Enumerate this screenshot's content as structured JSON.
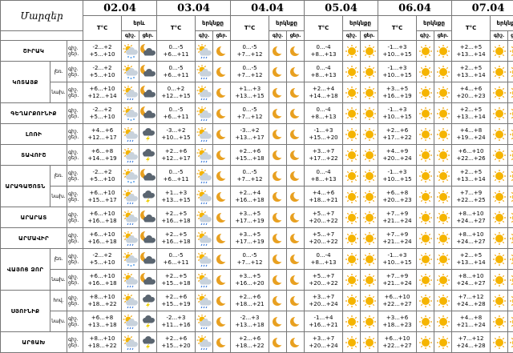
{
  "header": {
    "regions_label": "Մարզեր",
    "temp_unit": "T°C",
    "sky_label": "երկնքը",
    "sky_label_short": "երև",
    "day_label": "ցեր.",
    "night_label": "գիշ.",
    "dates": [
      "02.04",
      "03.04",
      "04.04",
      "05.04",
      "06.04",
      "07.04"
    ]
  },
  "sub": {
    "day": "ցեր.",
    "night": "գիշ.",
    "lowland": "լեռ.",
    "foothill": "նախ.",
    "hills": "հով."
  },
  "period": {
    "night": "գիշ.",
    "day": "ցեր."
  },
  "regions": [
    {
      "name": "ՇԻՐԱԿ",
      "rows": [
        {
          "temps": [
            [
              "-2...+2",
              "+5...+10"
            ],
            [
              "0...-5",
              "+6...+11"
            ],
            [
              "0...-5",
              "+7...+12"
            ],
            [
              "0...-4",
              "+8...+13"
            ],
            [
              "-1...+3",
              "+10...+15"
            ],
            [
              "+2...+5",
              "+13...+14"
            ]
          ],
          "icons": [
            "snow-cloud",
            "cloud-moon",
            "sunny-rain",
            "moon",
            "moon",
            "moon",
            "sunny",
            "sunny",
            "sunny",
            "sunny",
            "sunny",
            "sunny"
          ]
        }
      ]
    },
    {
      "name": "ԿՈՏԱՅՔ",
      "rows": [
        {
          "sub": "լեռ.",
          "temps": [
            [
              "-2...+2",
              "+5...+10"
            ],
            [
              "0...-5",
              "+6...+11"
            ],
            [
              "0...-5",
              "+7...+12"
            ],
            [
              "0...-4",
              "+8...+13"
            ],
            [
              "-1...+3",
              "+10...+15"
            ],
            [
              "+2...+5",
              "+13...+14"
            ]
          ],
          "icons": [
            "snow-cloud",
            "cloud-moon",
            "sunny-rain",
            "moon",
            "moon",
            "moon",
            "sunny",
            "sunny",
            "sunny",
            "sunny",
            "sunny",
            "sunny"
          ]
        },
        {
          "sub": "նախ.",
          "temps": [
            [
              "+6...+10",
              "+12...+14"
            ],
            [
              "0...+2",
              "+12...+15"
            ],
            [
              "+1...+3",
              "+13...+15"
            ],
            [
              "+2...+4",
              "+14...+18"
            ],
            [
              "+3...+5",
              "+16...+19"
            ],
            [
              "+4...+6",
              "+20...+23"
            ]
          ],
          "icons": [
            "sunny-rain",
            "cloud-moon",
            "sunny-rain",
            "moon",
            "moon",
            "moon",
            "sunny",
            "sunny",
            "sunny",
            "sunny",
            "sunny",
            "sunny"
          ]
        }
      ]
    },
    {
      "name": "ԳԵՂԱՐՔՈՒՆԻՔ",
      "rows": [
        {
          "temps": [
            [
              "-2...+2",
              "+5...+10"
            ],
            [
              "0...-5",
              "+6...+11"
            ],
            [
              "0...-5",
              "+7...+12"
            ],
            [
              "0...-4",
              "+8...+13"
            ],
            [
              "-1...+3",
              "+10...+15"
            ],
            [
              "+2...+5",
              "+13...+14"
            ]
          ],
          "icons": [
            "snow-cloud",
            "cloud-moon",
            "sunny-rain",
            "moon",
            "moon",
            "moon",
            "sunny",
            "sunny",
            "sunny",
            "sunny",
            "sunny",
            "sunny"
          ]
        }
      ]
    },
    {
      "name": "ԼՈՌԻ",
      "rows": [
        {
          "temps": [
            [
              "+4...+6",
              "+12...+17"
            ],
            [
              "-3...+2",
              "+10...+15"
            ],
            [
              "-3...+2",
              "+13...+17"
            ],
            [
              "-1...+3",
              "+15...+20"
            ],
            [
              "+2...+6",
              "+17...+22"
            ],
            [
              "+4...+8",
              "+19...+24"
            ]
          ],
          "icons": [
            "sunny-rain",
            "cloud-storm",
            "sunny-rain",
            "moon",
            "moon",
            "moon",
            "sunny",
            "sunny",
            "sunny",
            "sunny",
            "sunny",
            "sunny"
          ]
        }
      ]
    },
    {
      "name": "ՏԱՎՈՒՇ",
      "rows": [
        {
          "temps": [
            [
              "+6...+8",
              "+14...+19"
            ],
            [
              "+2...+6",
              "+12...+17"
            ],
            [
              "+2...+6",
              "+15...+18"
            ],
            [
              "+3...+7",
              "+17...+22"
            ],
            [
              "+4...+9",
              "+20...+24"
            ],
            [
              "+6...+10",
              "+22...+26"
            ]
          ],
          "icons": [
            "sunny-rain",
            "cloud-storm",
            "sunny-rain",
            "moon",
            "moon",
            "moon",
            "sunny",
            "sunny",
            "sunny",
            "sunny",
            "sunny",
            "sunny"
          ]
        }
      ]
    },
    {
      "name": "ԱՐԱԳԱԾՈՏՆ",
      "rows": [
        {
          "sub": "լեռ.",
          "temps": [
            [
              "-2...+2",
              "+5...+10"
            ],
            [
              "0...-5",
              "+6...+11"
            ],
            [
              "0...-5",
              "+7...+12"
            ],
            [
              "0...-4",
              "+8...+13"
            ],
            [
              "-1...+3",
              "+10...+15"
            ],
            [
              "+2...+5",
              "+13...+14"
            ]
          ],
          "icons": [
            "snow-cloud",
            "cloud-moon",
            "sunny-rain",
            "moon",
            "moon",
            "moon",
            "sunny",
            "sunny",
            "sunny",
            "sunny",
            "sunny",
            "sunny"
          ]
        },
        {
          "sub": "նախ.",
          "temps": [
            [
              "+6...+10",
              "+15...+17"
            ],
            [
              "+1...+3",
              "+13...+15"
            ],
            [
              "+2...+4",
              "+16...+18"
            ],
            [
              "+4...+6",
              "+18...+21"
            ],
            [
              "+6...+8",
              "+20...+23"
            ],
            [
              "+7...+9",
              "+22...+25"
            ]
          ],
          "icons": [
            "sunny-rain",
            "cloud-storm",
            "sunny-rain",
            "moon",
            "moon",
            "moon",
            "sunny",
            "sunny",
            "sunny",
            "sunny",
            "sunny",
            "sunny"
          ]
        }
      ]
    },
    {
      "name": "ԱՐԱՐԱՏ",
      "rows": [
        {
          "temps": [
            [
              "+6...+10",
              "+16...+18"
            ],
            [
              "+2...+5",
              "+16...+18"
            ],
            [
              "+3...+5",
              "+17...+19"
            ],
            [
              "+5...+7",
              "+20...+22"
            ],
            [
              "+7...+9",
              "+21...+24"
            ],
            [
              "+8...+10",
              "+24...+27"
            ]
          ],
          "icons": [
            "sunny-rain",
            "cloud-moon",
            "sunny-rain",
            "moon",
            "moon",
            "moon",
            "sunny",
            "sunny",
            "sunny",
            "sunny",
            "sunny",
            "sunny"
          ]
        }
      ]
    },
    {
      "name": "ԱՐՄԱՎԻՐ",
      "rows": [
        {
          "temps": [
            [
              "+6...+10",
              "+16...+18"
            ],
            [
              "+2...+5",
              "+16...+18"
            ],
            [
              "+3...+5",
              "+17...+19"
            ],
            [
              "+5...+7",
              "+20...+22"
            ],
            [
              "+7...+9",
              "+21...+24"
            ],
            [
              "+8...+10",
              "+24...+27"
            ]
          ],
          "icons": [
            "sunny-rain",
            "cloud-moon",
            "sunny-rain",
            "moon",
            "moon",
            "moon",
            "sunny",
            "sunny",
            "sunny",
            "sunny",
            "sunny",
            "sunny"
          ]
        }
      ]
    },
    {
      "name": "ՎԱՅՈՑ ՁՈՐ",
      "rows": [
        {
          "sub": "լեռ.",
          "temps": [
            [
              "-2...+2",
              "+5...+10"
            ],
            [
              "0...-5",
              "+6...+11"
            ],
            [
              "0...-5",
              "+7...+12"
            ],
            [
              "0...-4",
              "+8...+13"
            ],
            [
              "-1...+3",
              "+10...+15"
            ],
            [
              "+2...+5",
              "+13...+14"
            ]
          ],
          "icons": [
            "snow-cloud",
            "cloud-moon",
            "sunny-rain",
            "moon",
            "moon",
            "moon",
            "sunny",
            "sunny",
            "sunny",
            "sunny",
            "sunny",
            "sunny"
          ]
        },
        {
          "sub": "նախ.",
          "temps": [
            [
              "+6...+10",
              "+16...+18"
            ],
            [
              "+2...+5",
              "+15...+18"
            ],
            [
              "+3...+5",
              "+16...+20"
            ],
            [
              "+5...+7",
              "+20...+22"
            ],
            [
              "+7...+9",
              "+21...+24"
            ],
            [
              "+8...+10",
              "+24...+27"
            ]
          ],
          "icons": [
            "sunny-rain",
            "cloud-moon",
            "sunny-rain",
            "moon",
            "moon",
            "moon",
            "sunny",
            "sunny",
            "sunny",
            "sunny",
            "sunny",
            "sunny"
          ]
        }
      ]
    },
    {
      "name": "ՍՅՈՒՆԻՔ",
      "rows": [
        {
          "sub": "հով.",
          "temps": [
            [
              "+8...+10",
              "+18...+22"
            ],
            [
              "+2...+6",
              "+15...+19"
            ],
            [
              "+2...+6",
              "+18...+21"
            ],
            [
              "+3...+7",
              "+20...+24"
            ],
            [
              "+6...+10",
              "+22...+27"
            ],
            [
              "+7...+12",
              "+24...+28"
            ]
          ],
          "icons": [
            "sunny-rain",
            "cloud-storm",
            "sunny-rain",
            "moon",
            "moon",
            "moon",
            "sunny",
            "sunny",
            "sunny",
            "sunny",
            "sunny",
            "sunny"
          ]
        },
        {
          "sub": "նախ.",
          "temps": [
            [
              "+6...+8",
              "+13...+18"
            ],
            [
              "-2...+3",
              "+11...+16"
            ],
            [
              "-2...+3",
              "+13...+18"
            ],
            [
              "-1...+4",
              "+16...+21"
            ],
            [
              "+3...+6",
              "+18...+23"
            ],
            [
              "+4...+8",
              "+21...+24"
            ]
          ],
          "icons": [
            "sunny-rain",
            "cloud-storm",
            "sunny-rain",
            "moon",
            "moon",
            "moon",
            "sunny",
            "sunny",
            "sunny",
            "sunny",
            "sunny",
            "sunny"
          ]
        }
      ]
    },
    {
      "name": "ԱՐՑԱԽ",
      "rows": [
        {
          "temps": [
            [
              "+8...+10",
              "+18...+22"
            ],
            [
              "+2...+6",
              "+15...+20"
            ],
            [
              "+2...+6",
              "+18...+22"
            ],
            [
              "+3...+7",
              "+20...+24"
            ],
            [
              "+6...+10",
              "+22...+27"
            ],
            [
              "+7...+12",
              "+24...+28"
            ]
          ],
          "icons": [
            "sunny-rain",
            "cloud-storm",
            "sunny-rain",
            "moon",
            "moon",
            "moon",
            "sunny",
            "sunny",
            "sunny",
            "sunny",
            "sunny",
            "sunny"
          ]
        }
      ]
    }
  ],
  "colors": {
    "sun": "#f5b400",
    "sun_ray": "#f0a000",
    "cloud": "#c8d2dc",
    "dark_cloud": "#5a6570",
    "moon": "#e8a020",
    "rain": "#2a6fd6",
    "snow": "#5aa0e8",
    "bolt": "#f0d000",
    "border": "#777777"
  }
}
